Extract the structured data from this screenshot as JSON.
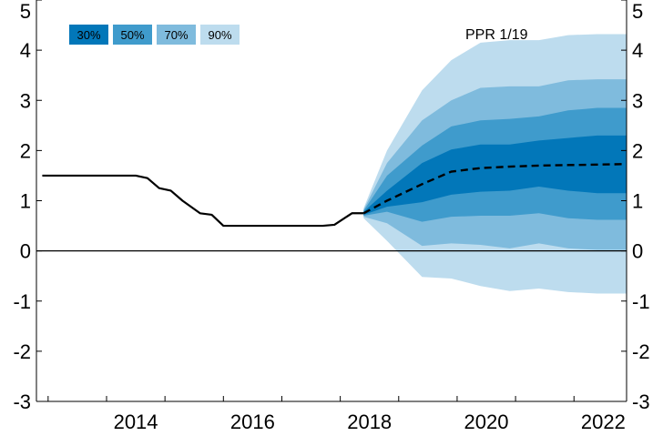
{
  "chart_data": {
    "type": "area",
    "annotation": "PPR 1/19",
    "colors": {
      "band30": "#0277b9",
      "band50": "#3f9bcc",
      "band70": "#7fbbdd",
      "band90": "#bddcee",
      "line": "#000000"
    },
    "legend": {
      "placement": "top-left",
      "items": [
        {
          "label": "30%",
          "color": "#0277b9"
        },
        {
          "label": "50%",
          "color": "#3f9bcc"
        },
        {
          "label": "70%",
          "color": "#7fbbdd"
        },
        {
          "label": "90%",
          "color": "#bddcee"
        }
      ]
    },
    "x_range": [
      2012.8,
      2022.9
    ],
    "ylim": [
      -3,
      5
    ],
    "x_ticks": [
      2014,
      2016,
      2018,
      2020,
      2022
    ],
    "y_ticks_left": [
      "-3",
      "-2",
      "-1",
      "0",
      "1",
      "2",
      "3",
      "4",
      "5"
    ],
    "y_ticks_right": [
      "-3",
      "-2",
      "-1",
      "0",
      "1",
      "2",
      "3",
      "4",
      "5"
    ],
    "y_tick_values": [
      -3,
      -2,
      -1,
      0,
      1,
      2,
      3,
      4,
      5
    ],
    "grid": false,
    "historical": {
      "x": [
        2012.9,
        2013.5,
        2014.0,
        2014.5,
        2014.7,
        2014.9,
        2015.1,
        2015.3,
        2015.6,
        2015.8,
        2016.0,
        2016.5,
        2017.0,
        2017.5,
        2017.7,
        2017.9,
        2018.2,
        2018.4
      ],
      "y": [
        1.5,
        1.5,
        1.5,
        1.5,
        1.45,
        1.25,
        1.2,
        1.0,
        0.75,
        0.72,
        0.5,
        0.5,
        0.5,
        0.5,
        0.5,
        0.52,
        0.75,
        0.75
      ]
    },
    "forecast": {
      "x": [
        2018.4,
        2018.8,
        2019.4,
        2019.9,
        2020.4,
        2020.9,
        2021.4,
        2021.9,
        2022.4,
        2022.9
      ],
      "median": [
        0.75,
        1.0,
        1.33,
        1.58,
        1.65,
        1.68,
        1.7,
        1.71,
        1.72,
        1.73
      ],
      "band30": {
        "upper": [
          0.78,
          1.2,
          1.75,
          2.02,
          2.12,
          2.12,
          2.2,
          2.25,
          2.3,
          2.3
        ],
        "lower": [
          0.72,
          0.88,
          0.97,
          1.12,
          1.18,
          1.2,
          1.28,
          1.2,
          1.15,
          1.15
        ]
      },
      "band50": {
        "upper": [
          0.8,
          1.5,
          2.1,
          2.48,
          2.6,
          2.63,
          2.68,
          2.8,
          2.85,
          2.85
        ]
      },
      "band50_lower": [
        0.7,
        0.78,
        0.58,
        0.68,
        0.7,
        0.7,
        0.75,
        0.65,
        0.62,
        0.62
      ],
      "band70": {
        "upper": [
          0.82,
          1.75,
          2.6,
          3.0,
          3.25,
          3.28,
          3.28,
          3.4,
          3.42,
          3.42
        ],
        "lower": [
          0.68,
          0.55,
          0.1,
          0.15,
          0.12,
          0.05,
          0.15,
          0.05,
          0.02,
          0.02
        ]
      },
      "band90": {
        "upper": [
          0.85,
          2.0,
          3.2,
          3.8,
          4.15,
          4.2,
          4.2,
          4.3,
          4.32,
          4.32
        ],
        "lower": [
          0.65,
          0.2,
          -0.52,
          -0.55,
          -0.7,
          -0.8,
          -0.75,
          -0.82,
          -0.85,
          -0.85
        ]
      }
    }
  }
}
